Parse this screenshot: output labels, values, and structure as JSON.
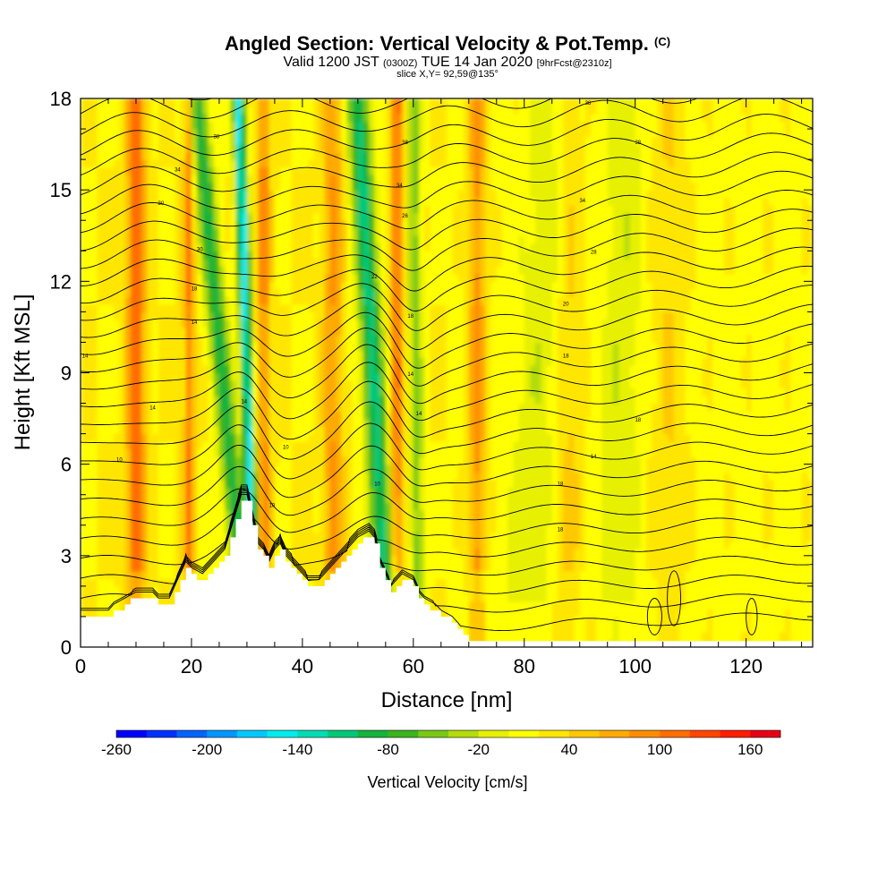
{
  "title": {
    "main": "Angled Section: Vertical Velocity & Pot.Temp.",
    "main_suffix": "(C)",
    "sub_a": "Valid 1200 JST",
    "sub_b": "(0300Z)",
    "sub_c": "TUE 14 Jan 2020",
    "sub_d": "[9hrFcst@2310z]",
    "slice": "slice X,Y= 92,59@135°"
  },
  "chart_data": {
    "type": "heatmap",
    "xlabel": "Distance [nm]",
    "ylabel": "Height [Kft MSL]",
    "xlim": [
      0,
      132
    ],
    "ylim": [
      0,
      18
    ],
    "x_ticks": [
      0,
      20,
      40,
      60,
      80,
      100,
      120
    ],
    "y_ticks": [
      0,
      3,
      6,
      9,
      12,
      15,
      18
    ],
    "colorbar": {
      "title": "Vertical Velocity [cm/s]",
      "min": -260,
      "max": 180,
      "step": 20,
      "labels": [
        -260,
        -200,
        -140,
        -80,
        -20,
        40,
        100,
        160
      ],
      "colors": [
        "#0000ff",
        "#0030ff",
        "#0064ff",
        "#0096ff",
        "#00c8ff",
        "#00ecec",
        "#00dcb4",
        "#00c878",
        "#14b43c",
        "#3cb41e",
        "#78c814",
        "#b4dc0a",
        "#e6f000",
        "#ffff00",
        "#ffe600",
        "#ffc800",
        "#ffaa00",
        "#ff8c00",
        "#ff6e00",
        "#ff4600",
        "#ff1e00",
        "#e60014",
        "#c8003c",
        "#a00064",
        "#780078",
        "#50008c"
      ]
    },
    "terrain_kft": [
      [
        0,
        1.0
      ],
      [
        5,
        1.0
      ],
      [
        6,
        1.2
      ],
      [
        8,
        1.4
      ],
      [
        10,
        1.6
      ],
      [
        13,
        1.6
      ],
      [
        14,
        1.4
      ],
      [
        16,
        1.4
      ],
      [
        17,
        1.8
      ],
      [
        18,
        2.2
      ],
      [
        19,
        2.6
      ],
      [
        20,
        2.4
      ],
      [
        22,
        2.2
      ],
      [
        24,
        2.6
      ],
      [
        26,
        3.0
      ],
      [
        27,
        3.6
      ],
      [
        28,
        4.2
      ],
      [
        29,
        4.8
      ],
      [
        30,
        4.8
      ],
      [
        31,
        4.0
      ],
      [
        32,
        3.2
      ],
      [
        33,
        3.0
      ],
      [
        34,
        2.6
      ],
      [
        35,
        3.0
      ],
      [
        36,
        3.2
      ],
      [
        37,
        2.8
      ],
      [
        38,
        2.6
      ],
      [
        39,
        2.4
      ],
      [
        40,
        2.2
      ],
      [
        41,
        2.0
      ],
      [
        43,
        2.0
      ],
      [
        44,
        2.2
      ],
      [
        45,
        2.4
      ],
      [
        46,
        2.6
      ],
      [
        47,
        2.8
      ],
      [
        48,
        3.0
      ],
      [
        50,
        3.4
      ],
      [
        52,
        3.6
      ],
      [
        53,
        3.4
      ],
      [
        54,
        2.6
      ],
      [
        55,
        2.2
      ],
      [
        56,
        1.8
      ],
      [
        57,
        2.0
      ],
      [
        58,
        2.2
      ],
      [
        60,
        2.0
      ],
      [
        61,
        1.6
      ],
      [
        62,
        1.4
      ],
      [
        64,
        1.2
      ],
      [
        65,
        1.0
      ],
      [
        67,
        0.8
      ],
      [
        68,
        0.6
      ],
      [
        70,
        0.3
      ],
      [
        132,
        0.3
      ]
    ],
    "updraft_bands": [
      {
        "x": 10,
        "w": 1.6,
        "v": 100
      },
      {
        "x": 19.5,
        "w": 0.9,
        "v": 80
      },
      {
        "x": 33,
        "w": 1.3,
        "v": 70
      },
      {
        "x": 45.5,
        "w": 1.8,
        "v": 60
      },
      {
        "x": 57,
        "w": 1.1,
        "v": 90
      },
      {
        "x": 71.5,
        "w": 1.5,
        "v": 70
      },
      {
        "x": 88,
        "w": 2.5,
        "v": 30
      },
      {
        "x": 106,
        "w": 3.0,
        "v": 25
      }
    ],
    "downdraft_bands": [
      {
        "x0": 30,
        "x1": 21,
        "w": 1.8,
        "v": -90
      },
      {
        "x0": 31.5,
        "x1": 28.5,
        "w": 1.1,
        "v": -150
      },
      {
        "x0": 55.5,
        "x1": 50,
        "w": 2.0,
        "v": -110
      },
      {
        "x0": 61,
        "x1": 60,
        "w": 1.2,
        "v": -50
      },
      {
        "x0": 80,
        "x1": 85,
        "w": 4.0,
        "v": -10
      },
      {
        "x0": 97,
        "x1": 98,
        "w": 3.5,
        "v": -12
      }
    ],
    "isentrope_labels": [
      {
        "x": 13,
        "y": 7.8,
        "t": "14"
      },
      {
        "x": 7,
        "y": 6.1,
        "t": "10"
      },
      {
        "x": 0.8,
        "y": 9.5,
        "t": "14"
      },
      {
        "x": 20.5,
        "y": 10.6,
        "t": "14"
      },
      {
        "x": 20.5,
        "y": 11.7,
        "t": "18"
      },
      {
        "x": 21.5,
        "y": 13.0,
        "t": "30"
      },
      {
        "x": 14.5,
        "y": 14.5,
        "t": "30"
      },
      {
        "x": 17.5,
        "y": 15.6,
        "t": "34"
      },
      {
        "x": 24.5,
        "y": 16.7,
        "t": "38"
      },
      {
        "x": 29.5,
        "y": 8.0,
        "t": "14"
      },
      {
        "x": 37,
        "y": 6.5,
        "t": "10"
      },
      {
        "x": 34.5,
        "y": 4.6,
        "t": "10"
      },
      {
        "x": 53.5,
        "y": 5.3,
        "t": "10"
      },
      {
        "x": 61,
        "y": 7.6,
        "t": "14"
      },
      {
        "x": 59.5,
        "y": 8.9,
        "t": "14"
      },
      {
        "x": 59.5,
        "y": 10.8,
        "t": "18"
      },
      {
        "x": 53,
        "y": 12.1,
        "t": "22"
      },
      {
        "x": 58.5,
        "y": 14.1,
        "t": "26"
      },
      {
        "x": 57.5,
        "y": 15.1,
        "t": "34"
      },
      {
        "x": 58.5,
        "y": 16.5,
        "t": "38"
      },
      {
        "x": 92.5,
        "y": 6.2,
        "t": "14"
      },
      {
        "x": 86.5,
        "y": 5.3,
        "t": "18"
      },
      {
        "x": 86.5,
        "y": 3.8,
        "t": "18"
      },
      {
        "x": 87.5,
        "y": 9.5,
        "t": "18"
      },
      {
        "x": 100.5,
        "y": 7.4,
        "t": "18"
      },
      {
        "x": 87.5,
        "y": 11.2,
        "t": "20"
      },
      {
        "x": 92.5,
        "y": 12.9,
        "t": "28"
      },
      {
        "x": 90.5,
        "y": 14.6,
        "t": "34"
      },
      {
        "x": 100.5,
        "y": 16.5,
        "t": "38"
      },
      {
        "x": 91.5,
        "y": 17.8,
        "t": "38"
      }
    ]
  }
}
